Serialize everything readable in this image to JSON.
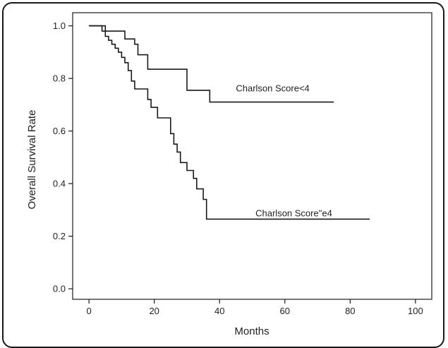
{
  "chart_data": {
    "type": "line",
    "xlabel": "Months",
    "ylabel": "Overall Survival Rate",
    "xlim": [
      -5,
      105
    ],
    "ylim": [
      -0.04,
      1.05
    ],
    "x_ticks": [
      0,
      20,
      40,
      60,
      80,
      100
    ],
    "y_ticks": [
      0.0,
      0.2,
      0.4,
      0.6,
      0.8,
      1.0
    ],
    "x_tick_labels": [
      "0",
      "20",
      "40",
      "60",
      "80",
      "100"
    ],
    "y_tick_labels": [
      "0.0",
      "0.2",
      "0.4",
      "0.6",
      "0.8",
      "1.0"
    ],
    "grid": false,
    "line_color": "#1a1a1a",
    "series": [
      {
        "label": "Charlson Score<4",
        "label_at": [
          45,
          0.75
        ],
        "x": [
          0,
          5,
          5,
          11,
          11,
          14,
          14,
          15,
          15,
          18,
          18,
          30,
          30,
          37,
          37,
          75
        ],
        "y": [
          1.0,
          1.0,
          0.98,
          0.98,
          0.95,
          0.95,
          0.93,
          0.93,
          0.89,
          0.89,
          0.835,
          0.835,
          0.755,
          0.755,
          0.71,
          0.71
        ]
      },
      {
        "label": "Charlson Score\"e4",
        "label_at": [
          51,
          0.275
        ],
        "x": [
          0,
          4,
          4,
          5,
          5,
          6,
          6,
          7,
          7,
          8,
          8,
          9,
          9,
          10,
          10,
          11,
          11,
          12,
          12,
          13,
          13,
          14,
          14,
          18,
          18,
          19,
          19,
          21,
          21,
          25,
          25,
          26,
          26,
          27,
          27,
          28,
          28,
          30,
          30,
          32,
          32,
          33,
          33,
          35,
          35,
          36,
          36,
          86
        ],
        "y": [
          1.0,
          1.0,
          0.98,
          0.98,
          0.96,
          0.96,
          0.945,
          0.945,
          0.93,
          0.93,
          0.915,
          0.915,
          0.9,
          0.9,
          0.88,
          0.88,
          0.86,
          0.86,
          0.83,
          0.83,
          0.79,
          0.79,
          0.76,
          0.76,
          0.72,
          0.72,
          0.69,
          0.69,
          0.65,
          0.65,
          0.59,
          0.59,
          0.55,
          0.55,
          0.52,
          0.52,
          0.48,
          0.48,
          0.45,
          0.45,
          0.42,
          0.42,
          0.38,
          0.38,
          0.34,
          0.34,
          0.265,
          0.265
        ]
      }
    ]
  }
}
